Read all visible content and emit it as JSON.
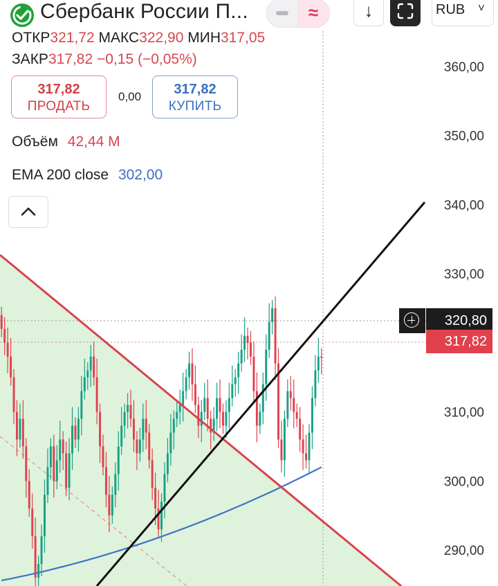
{
  "header": {
    "title": "Сбербанк России П...",
    "currency": "RUB",
    "currency_chevron": "˅",
    "down_arrow": "↓",
    "indicator_symbol": "≈"
  },
  "ohlc": {
    "open_label": "ОТКР",
    "open_value": "321,72",
    "high_label": "МАКС",
    "high_value": "322,90",
    "low_label": "МИН",
    "low_value": "317,05",
    "close_label": "ЗАКР",
    "close_value": "317,82",
    "change": "−0,15 (−0,05%)"
  },
  "trade": {
    "sell_price": "317,82",
    "sell_label": "ПРОДАТЬ",
    "spread": "0,00",
    "buy_price": "317,82",
    "buy_label": "КУПИТЬ"
  },
  "volume": {
    "label": "Объём",
    "value": "42,44 M"
  },
  "ema": {
    "label": "EMA 200 close",
    "value": "302,00"
  },
  "price_tags": {
    "crosshair": "320,80",
    "last": "317,82"
  },
  "colors": {
    "up": "#16a085",
    "down": "#e0414c",
    "ema": "#3e73c4",
    "red_line": "#d9434c",
    "green_fill": "#dff2dc",
    "black_line": "#111111"
  },
  "chart_data": {
    "type": "candlestick",
    "ylim": [
      284.8,
      369.6
    ],
    "y_ticks": [
      "290,00",
      "300,00",
      "310,00",
      "320,00",
      "330,00",
      "340,00",
      "350,00",
      "360,00"
    ],
    "y_tick_values": [
      290,
      300,
      310,
      320,
      330,
      340,
      350,
      360
    ],
    "closes": [
      322,
      320,
      318,
      315,
      310,
      306,
      309,
      305,
      300,
      296,
      292,
      286,
      288,
      292,
      298,
      302,
      305,
      300,
      303,
      306,
      304,
      299,
      304,
      308,
      306,
      309,
      313,
      315,
      316,
      318,
      315,
      310,
      305,
      302,
      298,
      295,
      298,
      301,
      305,
      308,
      310,
      311,
      309,
      306,
      304,
      306,
      309,
      307,
      303,
      299,
      296,
      293,
      297,
      301,
      304,
      307,
      309,
      310,
      311,
      313,
      315,
      317,
      314,
      311,
      308,
      310,
      312,
      309,
      307,
      309,
      312,
      310,
      308,
      310,
      312,
      314,
      315,
      317,
      319,
      321,
      320,
      318,
      313,
      308,
      310,
      314,
      319,
      323,
      325,
      317,
      306,
      303,
      309,
      313,
      312,
      310,
      309,
      306,
      304,
      303,
      307,
      312,
      316,
      318,
      317.82
    ],
    "ema_start": 285.6,
    "ema_end": 302.0,
    "resistance_line": [
      [
        320,
        0
      ],
      [
        -10,
        1
      ]
    ],
    "support_line": [
      [
        316,
        0
      ],
      [
        -9,
        1
      ]
    ]
  }
}
